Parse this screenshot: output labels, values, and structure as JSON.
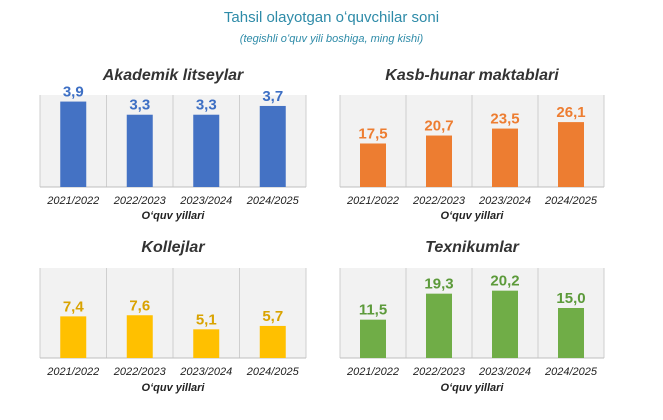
{
  "title": "Tahsil olayotgan oʻquvchilar soni",
  "subtitle": "(tegishli oʻquv yili boshiga, ming kishi)",
  "chart_data": [
    {
      "type": "bar",
      "title": "Akademik litseylar",
      "xlabel": "",
      "categories": [
        "2021/2022",
        "2022/2023",
        "2023/2024",
        "2024/2025"
      ],
      "values": [
        3.9,
        3.3,
        3.3,
        3.7
      ],
      "value_labels": [
        "3,9",
        "3,3",
        "3,3",
        "3,7"
      ],
      "ylim": [
        0,
        4.2
      ],
      "color": "#4472c4",
      "label_color": "#3d6fc4",
      "grid": "vertical"
    },
    {
      "type": "bar",
      "title": "Kasb-hunar maktablari",
      "xlabel": "Oʻquv yillari",
      "categories": [
        "2021/2022",
        "2022/2023",
        "2023/2024",
        "2024/2025"
      ],
      "values": [
        17.5,
        20.7,
        23.5,
        26.1
      ],
      "value_labels": [
        "17,5",
        "20,7",
        "23,5",
        "26,1"
      ],
      "ylim": [
        0,
        37
      ],
      "color": "#ed7d31",
      "label_color": "#ed7d31",
      "grid": "vertical"
    },
    {
      "type": "bar",
      "title": "Kollejlar",
      "xlabel": "Oʻquv yillari",
      "categories": [
        "2021/2022",
        "2022/2023",
        "2023/2024",
        "2024/2025"
      ],
      "values": [
        7.4,
        7.6,
        5.1,
        5.7
      ],
      "value_labels": [
        "7,4",
        "7,6",
        "5,1",
        "5,7"
      ],
      "ylim": [
        0,
        16
      ],
      "color": "#ffc000",
      "label_color": "#d9a300",
      "grid": "vertical"
    },
    {
      "type": "bar",
      "title": "Texnikumlar",
      "xlabel": "Oʻquv yillari",
      "categories": [
        "2021/2022",
        "2022/2023",
        "2023/2024",
        "2024/2025"
      ],
      "values": [
        11.5,
        19.3,
        20.2,
        15.0
      ],
      "value_labels": [
        "11,5",
        "19,3",
        "20,2",
        "15,0"
      ],
      "ylim": [
        0,
        27
      ],
      "color": "#70ad47",
      "label_color": "#5c9a3a",
      "grid": "vertical"
    }
  ],
  "footer_xlabel": "Oʻquv yillari"
}
